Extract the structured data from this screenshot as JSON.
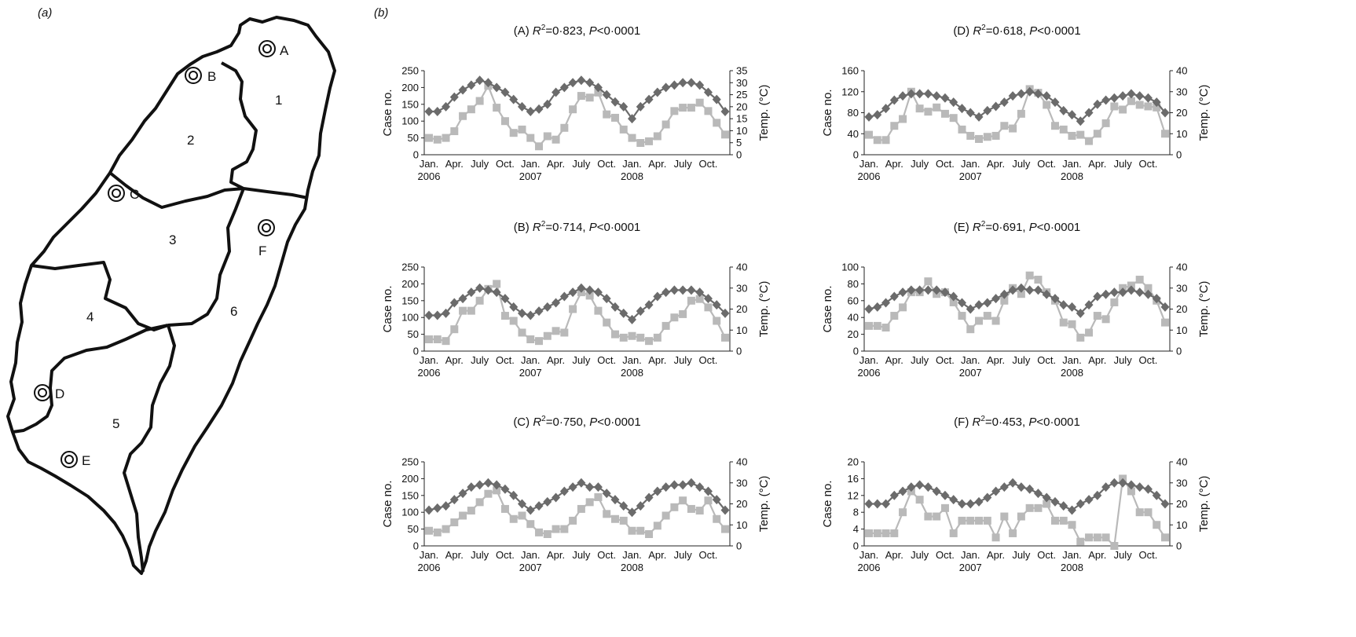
{
  "panel_a_label": "(a)",
  "panel_b_label": "(b)",
  "map": {
    "region_labels": [
      "1",
      "2",
      "3",
      "4",
      "5",
      "6"
    ],
    "site_labels": [
      "A",
      "B",
      "C",
      "D",
      "E",
      "F"
    ]
  },
  "colors": {
    "temperature": "#6b6b6b",
    "cases": "#b9b9b9"
  },
  "chart_data": [
    {
      "id": "A",
      "type": "line",
      "title_prefix": "(A)",
      "r2": "=0·823",
      "p": "<0·0001",
      "ylabel": "Case no.",
      "y2label": "Temp. (°C)",
      "ylim": [
        0,
        250
      ],
      "yticks": [
        0,
        50,
        100,
        150,
        200,
        250
      ],
      "y2lim": [
        0,
        35
      ],
      "y2ticks": [
        0,
        5,
        10,
        15,
        20,
        25,
        30,
        35
      ],
      "xticks": [
        "Jan.",
        "Apr.",
        "July",
        "Oct.",
        "Jan.",
        "Apr.",
        "July",
        "Oct.",
        "Jan.",
        "Apr.",
        "July",
        "Oct."
      ],
      "years": [
        "2006",
        "2007",
        "2008"
      ],
      "series": [
        {
          "name": "Temperature",
          "marker": "diamond",
          "axis": "right",
          "values": [
            18,
            18,
            20,
            24,
            27,
            29,
            31,
            30,
            28,
            26,
            23,
            20,
            18,
            19,
            21,
            26,
            28,
            30,
            31,
            30,
            28,
            25,
            22,
            20,
            15,
            20,
            23,
            26,
            28,
            29,
            30,
            30,
            29,
            26,
            23,
            18
          ]
        },
        {
          "name": "Cases",
          "marker": "square",
          "axis": "left",
          "values": [
            50,
            45,
            50,
            70,
            115,
            135,
            160,
            205,
            140,
            100,
            65,
            75,
            50,
            25,
            55,
            45,
            80,
            135,
            175,
            170,
            185,
            120,
            110,
            75,
            50,
            35,
            40,
            55,
            90,
            130,
            140,
            140,
            155,
            130,
            95,
            60
          ]
        }
      ]
    },
    {
      "id": "B",
      "type": "line",
      "title_prefix": "(B)",
      "r2": "=0·714",
      "p": "<0·0001",
      "ylabel": "Case no.",
      "y2label": "Temp. (°C)",
      "ylim": [
        0,
        250
      ],
      "yticks": [
        0,
        50,
        100,
        150,
        200,
        250
      ],
      "y2lim": [
        0,
        40
      ],
      "y2ticks": [
        0,
        10,
        20,
        30,
        40
      ],
      "xticks": [
        "Jan.",
        "Apr.",
        "July",
        "Oct.",
        "Jan.",
        "Apr.",
        "July",
        "Oct.",
        "Jan.",
        "Apr.",
        "July",
        "Oct."
      ],
      "years": [
        "2006",
        "2007",
        "2008"
      ],
      "series": [
        {
          "name": "Temperature",
          "marker": "diamond",
          "axis": "right",
          "values": [
            17,
            17,
            18,
            23,
            25,
            28,
            30,
            29,
            28,
            25,
            21,
            18,
            17,
            19,
            21,
            23,
            26,
            28,
            30,
            29,
            28,
            25,
            21,
            18,
            15,
            19,
            22,
            26,
            28,
            29,
            29,
            29,
            28,
            25,
            22,
            18
          ]
        },
        {
          "name": "Cases",
          "marker": "square",
          "axis": "left",
          "values": [
            35,
            35,
            30,
            65,
            120,
            120,
            150,
            185,
            200,
            105,
            90,
            55,
            35,
            30,
            45,
            60,
            55,
            125,
            175,
            165,
            120,
            85,
            50,
            40,
            45,
            40,
            30,
            40,
            75,
            100,
            110,
            150,
            155,
            130,
            90,
            40
          ]
        }
      ]
    },
    {
      "id": "C",
      "type": "line",
      "title_prefix": "(C)",
      "r2": "=0·750",
      "p": "<0·0001",
      "ylabel": "Case no.",
      "y2label": "Temp. (°C)",
      "ylim": [
        0,
        250
      ],
      "yticks": [
        0,
        50,
        100,
        150,
        200,
        250
      ],
      "y2lim": [
        0,
        40
      ],
      "y2ticks": [
        0,
        10,
        20,
        30,
        40
      ],
      "xticks": [
        "Jan.",
        "Apr.",
        "July",
        "Oct.",
        "Jan.",
        "Apr.",
        "July",
        "Oct.",
        "Jan.",
        "Apr.",
        "July",
        "Oct."
      ],
      "years": [
        "2006",
        "2007",
        "2008"
      ],
      "series": [
        {
          "name": "Temperature",
          "marker": "diamond",
          "axis": "right",
          "values": [
            17,
            18,
            19,
            22,
            25,
            28,
            29,
            30,
            29,
            27,
            24,
            20,
            17,
            19,
            21,
            23,
            26,
            28,
            30,
            28,
            28,
            25,
            22,
            19,
            16,
            19,
            23,
            26,
            28,
            29,
            29,
            30,
            28,
            26,
            22,
            17
          ]
        },
        {
          "name": "Cases",
          "marker": "square",
          "axis": "left",
          "values": [
            45,
            40,
            50,
            70,
            90,
            105,
            130,
            155,
            165,
            110,
            80,
            90,
            65,
            40,
            35,
            50,
            50,
            75,
            110,
            130,
            145,
            95,
            80,
            75,
            45,
            45,
            35,
            60,
            90,
            115,
            135,
            110,
            105,
            135,
            80,
            50
          ]
        }
      ]
    },
    {
      "id": "D",
      "type": "line",
      "title_prefix": "(D)",
      "r2": "=0·618",
      "p": "<0·0001",
      "ylabel": "Case no.",
      "y2label": "Temp. (°C)",
      "ylim": [
        0,
        160
      ],
      "yticks": [
        0,
        40,
        80,
        120,
        160
      ],
      "y2lim": [
        0,
        40
      ],
      "y2ticks": [
        0,
        10,
        20,
        30,
        40
      ],
      "xticks": [
        "Jan.",
        "Apr.",
        "July",
        "Oct.",
        "Jan.",
        "Apr.",
        "July",
        "Oct.",
        "Jan.",
        "Apr.",
        "July",
        "Oct."
      ],
      "years": [
        "2006",
        "2007",
        "2008"
      ],
      "series": [
        {
          "name": "Temperature",
          "marker": "diamond",
          "axis": "right",
          "values": [
            18,
            19,
            22,
            26,
            28,
            29,
            29,
            29,
            28,
            27,
            25,
            22,
            20,
            18,
            21,
            23,
            25,
            28,
            29,
            30,
            29,
            28,
            25,
            21,
            19,
            16,
            20,
            24,
            26,
            27,
            28,
            29,
            28,
            27,
            25,
            20
          ]
        },
        {
          "name": "Cases",
          "marker": "square",
          "axis": "left",
          "values": [
            38,
            28,
            28,
            55,
            68,
            120,
            88,
            82,
            90,
            78,
            70,
            48,
            36,
            30,
            34,
            36,
            55,
            50,
            78,
            125,
            118,
            95,
            55,
            48,
            36,
            38,
            26,
            40,
            60,
            92,
            86,
            102,
            95,
            92,
            90,
            40
          ]
        }
      ]
    },
    {
      "id": "E",
      "type": "line",
      "title_prefix": "(E)",
      "r2": "=0·691",
      "p": "<0·0001",
      "ylabel": "Case no.",
      "y2label": "Temp. (°C)",
      "ylim": [
        0,
        100
      ],
      "yticks": [
        0,
        20,
        40,
        60,
        80,
        100
      ],
      "y2lim": [
        0,
        40
      ],
      "y2ticks": [
        0,
        10,
        20,
        30,
        40
      ],
      "xticks": [
        "Jan.",
        "Apr.",
        "July",
        "Oct.",
        "Jan.",
        "Apr.",
        "July",
        "Oct.",
        "Jan.",
        "Apr.",
        "July",
        "Oct."
      ],
      "years": [
        "2006",
        "2007",
        "2008"
      ],
      "series": [
        {
          "name": "Temperature",
          "marker": "diamond",
          "axis": "right",
          "values": [
            20,
            21,
            23,
            26,
            28,
            29,
            29,
            29,
            29,
            28,
            26,
            23,
            20,
            22,
            23,
            25,
            27,
            29,
            30,
            29,
            29,
            27,
            25,
            22,
            21,
            18,
            22,
            26,
            27,
            28,
            28,
            29,
            28,
            27,
            25,
            21
          ]
        },
        {
          "name": "Cases",
          "marker": "square",
          "axis": "left",
          "values": [
            30,
            30,
            28,
            42,
            52,
            70,
            70,
            83,
            68,
            70,
            58,
            42,
            26,
            36,
            42,
            36,
            60,
            75,
            68,
            90,
            85,
            70,
            60,
            34,
            32,
            16,
            22,
            42,
            38,
            58,
            75,
            78,
            85,
            75,
            60,
            34
          ]
        }
      ]
    },
    {
      "id": "F",
      "type": "line",
      "title_prefix": "(F)",
      "r2": "=0·453",
      "p": "<0·0001",
      "ylabel": "Case no.",
      "y2label": "Temp. (°C)",
      "ylim": [
        0,
        20
      ],
      "yticks": [
        0,
        4,
        8,
        12,
        16,
        20
      ],
      "y2lim": [
        0,
        40
      ],
      "y2ticks": [
        0,
        10,
        20,
        30,
        40
      ],
      "xticks": [
        "Jan.",
        "Apr.",
        "July",
        "Oct.",
        "Jan.",
        "Apr.",
        "July",
        "Oct.",
        "Jan.",
        "Apr.",
        "July",
        "Oct."
      ],
      "years": [
        "2006",
        "2007",
        "2008"
      ],
      "series": [
        {
          "name": "Temperature",
          "marker": "diamond",
          "axis": "right",
          "values": [
            20,
            20,
            20,
            24,
            26,
            28,
            29,
            28,
            26,
            24,
            22,
            20,
            20,
            21,
            23,
            26,
            28,
            30,
            28,
            27,
            25,
            23,
            21,
            19,
            17,
            20,
            22,
            24,
            28,
            30,
            30,
            29,
            28,
            27,
            24,
            20
          ]
        },
        {
          "name": "Cases",
          "marker": "square",
          "axis": "left",
          "values": [
            3,
            3,
            3,
            3,
            8,
            13,
            11,
            7,
            7,
            9,
            3,
            6,
            6,
            6,
            6,
            2,
            7,
            3,
            7,
            9,
            9,
            10,
            6,
            6,
            5,
            1,
            2,
            2,
            2,
            0,
            16,
            13,
            8,
            8,
            5,
            2
          ]
        }
      ]
    }
  ]
}
